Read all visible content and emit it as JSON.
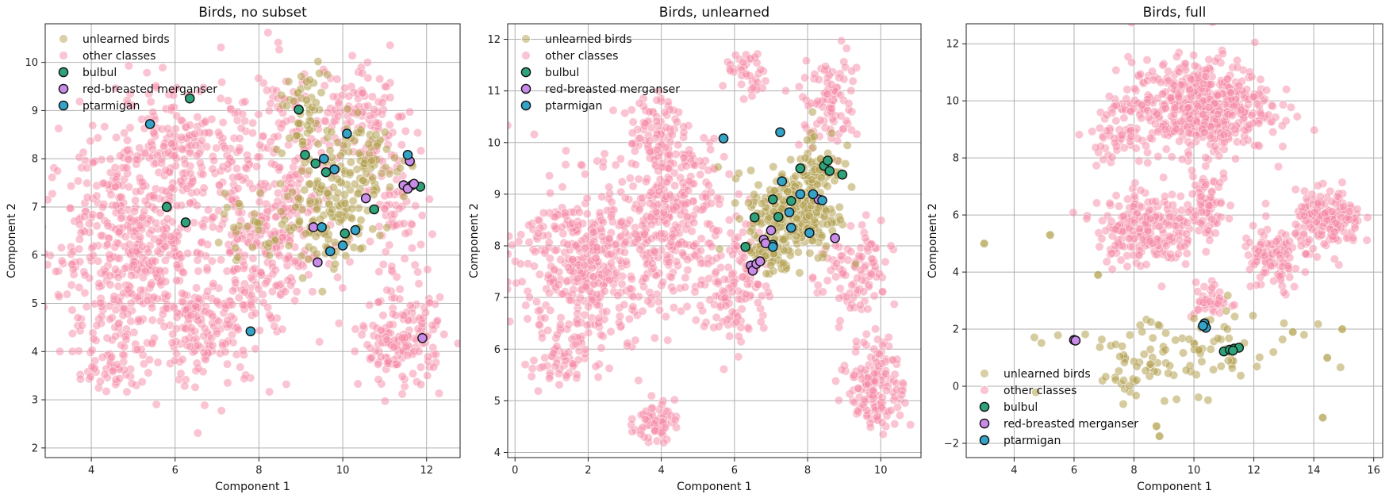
{
  "colors": {
    "unlearned_birds": "#b3a150",
    "other_classes": "#f58aa5",
    "bulbul": "#2ea37a",
    "red_breasted_merganser": "#c98be8",
    "ptarmigan": "#34a3c8",
    "edge": "#111111",
    "grid": "#b0b0b0"
  },
  "chart_data": [
    {
      "type": "scatter",
      "title": "Birds, no subset",
      "xlabel": "Component 1",
      "ylabel": "Component 2",
      "xlim": [
        2.9,
        12.8
      ],
      "ylim": [
        1.8,
        10.8
      ],
      "xticks": [
        4,
        6,
        8,
        10,
        12
      ],
      "yticks": [
        2,
        3,
        4,
        5,
        6,
        7,
        8,
        9,
        10
      ],
      "grid": true,
      "legend_position": "top-left",
      "legend": [
        "unlearned birds",
        "other classes",
        "bulbul",
        "red-breasted merganser",
        "ptarmigan"
      ],
      "clusters": [
        {
          "series": "other classes",
          "cx": 5.0,
          "cy": 6.2,
          "rx": 1.9,
          "ry": 2.0,
          "n": 520
        },
        {
          "series": "other classes",
          "cx": 6.2,
          "cy": 8.2,
          "rx": 1.6,
          "ry": 1.1,
          "n": 180
        },
        {
          "series": "other classes",
          "cx": 6.8,
          "cy": 4.5,
          "rx": 1.4,
          "ry": 1.2,
          "n": 160
        },
        {
          "series": "other classes",
          "cx": 8.6,
          "cy": 7.6,
          "rx": 1.3,
          "ry": 2.3,
          "n": 220
        },
        {
          "series": "other classes",
          "cx": 11.4,
          "cy": 4.2,
          "rx": 0.9,
          "ry": 0.8,
          "n": 160
        },
        {
          "series": "other classes",
          "cx": 10.4,
          "cy": 8.9,
          "rx": 1.1,
          "ry": 0.8,
          "n": 100
        },
        {
          "series": "other classes",
          "cx": 8.0,
          "cy": 5.8,
          "rx": 1.1,
          "ry": 1.4,
          "n": 120
        },
        {
          "series": "other classes",
          "cx": 11.3,
          "cy": 6.9,
          "rx": 0.7,
          "ry": 1.5,
          "n": 80
        },
        {
          "series": "other classes",
          "cx": 4.6,
          "cy": 3.9,
          "rx": 0.8,
          "ry": 0.7,
          "n": 60
        },
        {
          "series": "unlearned birds",
          "cx": 9.7,
          "cy": 6.7,
          "rx": 1.0,
          "ry": 0.9,
          "n": 110
        },
        {
          "series": "unlearned birds",
          "cx": 10.4,
          "cy": 7.9,
          "rx": 1.1,
          "ry": 0.8,
          "n": 100
        },
        {
          "series": "unlearned birds",
          "cx": 9.0,
          "cy": 9.0,
          "rx": 0.6,
          "ry": 0.8,
          "n": 50
        },
        {
          "series": "unlearned birds",
          "cx": 7.8,
          "cy": 6.5,
          "rx": 1.0,
          "ry": 0.6,
          "n": 30
        }
      ],
      "highlighted": [
        {
          "series": "bulbul",
          "points": [
            [
              6.35,
              9.25
            ],
            [
              5.8,
              7.0
            ],
            [
              6.25,
              6.68
            ],
            [
              8.95,
              9.02
            ],
            [
              9.1,
              8.08
            ],
            [
              9.35,
              7.9
            ],
            [
              9.6,
              7.72
            ],
            [
              10.05,
              6.45
            ],
            [
              10.75,
              6.95
            ],
            [
              11.65,
              7.45
            ],
            [
              11.85,
              7.42
            ]
          ]
        },
        {
          "series": "red-breasted merganser",
          "points": [
            [
              9.3,
              6.58
            ],
            [
              9.4,
              5.85
            ],
            [
              10.55,
              7.18
            ],
            [
              11.45,
              7.45
            ],
            [
              11.6,
              7.95
            ],
            [
              11.55,
              7.38
            ],
            [
              11.7,
              7.48
            ],
            [
              11.9,
              4.28
            ]
          ]
        },
        {
          "series": "ptarmigan",
          "points": [
            [
              5.4,
              8.72
            ],
            [
              7.8,
              4.42
            ],
            [
              9.5,
              6.58
            ],
            [
              9.55,
              8.0
            ],
            [
              9.8,
              7.78
            ],
            [
              10.1,
              8.52
            ],
            [
              9.7,
              6.08
            ],
            [
              10.0,
              6.2
            ],
            [
              10.3,
              6.52
            ],
            [
              11.55,
              8.08
            ]
          ]
        }
      ]
    },
    {
      "type": "scatter",
      "title": "Birds, unlearned",
      "xlabel": "Component 1",
      "ylabel": "Component 2",
      "xlim": [
        -0.2,
        11.1
      ],
      "ylim": [
        3.9,
        12.3
      ],
      "xticks": [
        0,
        2,
        4,
        6,
        8,
        10
      ],
      "yticks": [
        4,
        5,
        6,
        7,
        8,
        9,
        10,
        11,
        12
      ],
      "grid": true,
      "legend_position": "top-left",
      "legend": [
        "unlearned birds",
        "other classes",
        "bulbul",
        "red-breasted merganser",
        "ptarmigan"
      ],
      "clusters": [
        {
          "series": "other classes",
          "cx": 2.0,
          "cy": 7.7,
          "rx": 1.7,
          "ry": 1.5,
          "n": 420
        },
        {
          "series": "other classes",
          "cx": 4.3,
          "cy": 8.6,
          "rx": 1.4,
          "ry": 1.6,
          "n": 300
        },
        {
          "series": "other classes",
          "cx": 3.8,
          "cy": 10.2,
          "rx": 0.6,
          "ry": 0.6,
          "n": 70
        },
        {
          "series": "other classes",
          "cx": 3.8,
          "cy": 4.6,
          "rx": 0.5,
          "ry": 0.35,
          "n": 60
        },
        {
          "series": "other classes",
          "cx": 6.1,
          "cy": 7.3,
          "rx": 0.8,
          "ry": 1.2,
          "n": 120
        },
        {
          "series": "other classes",
          "cx": 9.9,
          "cy": 5.3,
          "rx": 0.7,
          "ry": 0.8,
          "n": 150
        },
        {
          "series": "other classes",
          "cx": 8.6,
          "cy": 10.8,
          "rx": 0.7,
          "ry": 0.9,
          "n": 90
        },
        {
          "series": "other classes",
          "cx": 6.4,
          "cy": 11.3,
          "rx": 0.6,
          "ry": 0.4,
          "n": 40
        },
        {
          "series": "other classes",
          "cx": 9.3,
          "cy": 7.4,
          "rx": 0.9,
          "ry": 0.9,
          "n": 100
        },
        {
          "series": "other classes",
          "cx": 1.2,
          "cy": 5.8,
          "rx": 0.7,
          "ry": 0.6,
          "n": 60
        },
        {
          "series": "unlearned birds",
          "cx": 7.6,
          "cy": 8.6,
          "rx": 1.1,
          "ry": 0.8,
          "n": 260
        },
        {
          "series": "unlearned birds",
          "cx": 8.3,
          "cy": 9.5,
          "rx": 0.6,
          "ry": 0.8,
          "n": 70
        },
        {
          "series": "unlearned birds",
          "cx": 6.9,
          "cy": 7.8,
          "rx": 0.6,
          "ry": 0.4,
          "n": 40
        }
      ],
      "highlighted": [
        {
          "series": "bulbul",
          "points": [
            [
              6.3,
              7.98
            ],
            [
              6.55,
              8.55
            ],
            [
              7.05,
              8.9
            ],
            [
              7.2,
              8.56
            ],
            [
              7.55,
              8.87
            ],
            [
              7.8,
              9.5
            ],
            [
              8.45,
              9.55
            ],
            [
              8.55,
              9.65
            ],
            [
              8.6,
              9.45
            ],
            [
              8.95,
              9.38
            ],
            [
              7.05,
              8.02
            ]
          ]
        },
        {
          "series": "red-breasted merganser",
          "points": [
            [
              6.45,
              7.62
            ],
            [
              6.5,
              7.52
            ],
            [
              6.6,
              7.65
            ],
            [
              6.7,
              7.7
            ],
            [
              6.8,
              8.12
            ],
            [
              6.85,
              8.05
            ],
            [
              7.0,
              8.3
            ],
            [
              8.3,
              8.9
            ],
            [
              8.75,
              8.15
            ]
          ]
        },
        {
          "series": "ptarmigan",
          "points": [
            [
              5.7,
              10.08
            ],
            [
              7.25,
              10.2
            ],
            [
              7.3,
              9.25
            ],
            [
              7.5,
              8.65
            ],
            [
              7.55,
              8.35
            ],
            [
              7.8,
              9.0
            ],
            [
              8.05,
              8.25
            ],
            [
              8.15,
              9.0
            ],
            [
              8.4,
              8.88
            ],
            [
              7.05,
              7.98
            ]
          ]
        }
      ]
    },
    {
      "type": "scatter",
      "title": "Birds, full",
      "xlabel": "Component 1",
      "ylabel": "Component 2",
      "xlim": [
        2.4,
        16.3
      ],
      "ylim": [
        -2.5,
        12.7
      ],
      "xticks": [
        4,
        6,
        8,
        10,
        12,
        14,
        16
      ],
      "yticks": [
        -2,
        0,
        2,
        4,
        6,
        8,
        10,
        12
      ],
      "grid": true,
      "legend_position": "bottom-left",
      "legend": [
        "unlearned birds",
        "other classes",
        "bulbul",
        "red-breasted merganser",
        "ptarmigan"
      ],
      "clusters": [
        {
          "series": "other classes",
          "cx": 10.2,
          "cy": 9.8,
          "rx": 2.1,
          "ry": 1.5,
          "n": 520
        },
        {
          "series": "other classes",
          "cx": 8.4,
          "cy": 5.5,
          "rx": 1.5,
          "ry": 1.2,
          "n": 220
        },
        {
          "series": "other classes",
          "cx": 14.5,
          "cy": 5.8,
          "rx": 1.0,
          "ry": 0.9,
          "n": 180
        },
        {
          "series": "other classes",
          "cx": 12.6,
          "cy": 4.4,
          "rx": 0.9,
          "ry": 1.1,
          "n": 100
        },
        {
          "series": "other classes",
          "cx": 10.4,
          "cy": 6.5,
          "rx": 0.8,
          "ry": 0.9,
          "n": 70
        },
        {
          "series": "other classes",
          "cx": 7.4,
          "cy": 8.9,
          "rx": 0.8,
          "ry": 0.9,
          "n": 60
        },
        {
          "series": "other classes",
          "cx": 10.6,
          "cy": 3.0,
          "rx": 0.6,
          "ry": 0.6,
          "n": 40
        },
        {
          "series": "unlearned birds",
          "cx": 9.5,
          "cy": 1.2,
          "rx": 3.6,
          "ry": 1.3,
          "n": 95
        },
        {
          "series": "unlearned birds",
          "cx": 7.9,
          "cy": 0.2,
          "rx": 1.0,
          "ry": 0.9,
          "n": 20
        }
      ],
      "extra_points": [
        {
          "series": "unlearned birds",
          "points": [
            [
              3.0,
              5.0
            ],
            [
              5.2,
              5.3
            ],
            [
              6.8,
              3.9
            ],
            [
              14.3,
              -1.1
            ],
            [
              14.95,
              2.0
            ],
            [
              14.45,
              1.0
            ],
            [
              8.85,
              -1.75
            ],
            [
              8.75,
              -1.4
            ],
            [
              13.3,
              1.9
            ]
          ]
        }
      ],
      "highlighted": [
        {
          "series": "bulbul",
          "points": [
            [
              11.0,
              1.22
            ],
            [
              11.2,
              1.28
            ],
            [
              11.35,
              1.32
            ],
            [
              11.5,
              1.35
            ],
            [
              11.3,
              1.25
            ]
          ]
        },
        {
          "series": "red-breasted merganser",
          "points": [
            [
              6.0,
              1.62
            ],
            [
              6.05,
              1.6
            ]
          ]
        },
        {
          "series": "ptarmigan",
          "points": [
            [
              10.35,
              2.2
            ],
            [
              10.4,
              2.05
            ],
            [
              10.3,
              2.12
            ]
          ]
        }
      ]
    }
  ]
}
